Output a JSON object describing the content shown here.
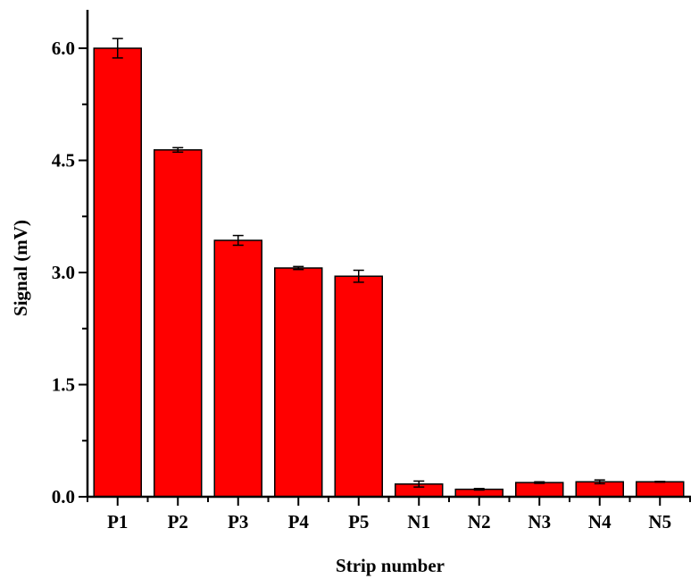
{
  "chart_data": {
    "type": "bar",
    "title": "",
    "xlabel": "Strip number",
    "ylabel": "Signal (mV)",
    "categories": [
      "P1",
      "P2",
      "P3",
      "P4",
      "P5",
      "N1",
      "N2",
      "N3",
      "N4",
      "N5"
    ],
    "values": [
      6.0,
      4.64,
      3.43,
      3.06,
      2.95,
      0.17,
      0.1,
      0.19,
      0.2,
      0.2
    ],
    "errors": [
      0.13,
      0.03,
      0.065,
      0.02,
      0.08,
      0.04,
      0.01,
      0.01,
      0.025,
      0.005
    ],
    "ylim": [
      0,
      6.5
    ],
    "yticks": [
      0.0,
      1.5,
      3.0,
      4.5,
      6.0
    ],
    "ytick_labels": [
      "0.0",
      "1.5",
      "3.0",
      "4.5",
      "6.0"
    ],
    "grid": false,
    "legend": null,
    "bar_color": "#ff0000",
    "edge_color": "#000000"
  }
}
